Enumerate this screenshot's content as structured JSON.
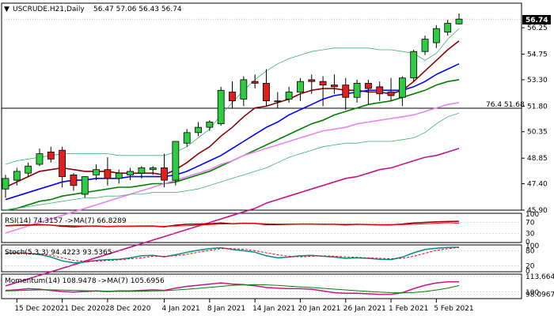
{
  "header": {
    "symbol": "USCRUDE.H21,Daily",
    "ohlc": "56.47 57.06 56.43 56.74"
  },
  "price_tag": "56.74",
  "fib_label": "76.4 51.68",
  "chart_data": [
    {
      "type": "candlestick",
      "ylim": [
        45.9,
        57.6
      ],
      "price_ticks": [
        "56.25",
        "54.75",
        "53.30",
        "51.80",
        "50.35",
        "48.85",
        "47.40",
        "45.90"
      ],
      "x_ticks": [
        "15 Dec 2020",
        "21 Dec 2020",
        "28 Dec 2020",
        "4 Jan 2021",
        "8 Jan 2021",
        "14 Jan 2021",
        "20 Jan 2021",
        "26 Jan 2021",
        "1 Feb 2021",
        "5 Feb 2021"
      ],
      "fib_level": 51.68,
      "candles": [
        {
          "date": "14 Dec 2020",
          "o": 47.1,
          "h": 47.9,
          "l": 46.6,
          "c": 47.7
        },
        {
          "date": "15 Dec 2020",
          "o": 47.6,
          "h": 48.3,
          "l": 47.3,
          "c": 48.1
        },
        {
          "date": "16 Dec 2020",
          "o": 48.0,
          "h": 48.6,
          "l": 47.8,
          "c": 48.4
        },
        {
          "date": "17 Dec 2020",
          "o": 48.5,
          "h": 49.4,
          "l": 48.4,
          "c": 49.1
        },
        {
          "date": "18 Dec 2020",
          "o": 49.2,
          "h": 49.5,
          "l": 48.6,
          "c": 48.8
        },
        {
          "date": "21 Dec 2020",
          "o": 49.3,
          "h": 49.5,
          "l": 47.2,
          "c": 47.8
        },
        {
          "date": "22 Dec 2020",
          "o": 47.9,
          "h": 48.0,
          "l": 47.0,
          "c": 47.3
        },
        {
          "date": "23 Dec 2020",
          "o": 46.8,
          "h": 47.7,
          "l": 46.6,
          "c": 47.8
        },
        {
          "date": "24 Dec 2020",
          "o": 47.9,
          "h": 48.5,
          "l": 47.6,
          "c": 48.2
        },
        {
          "date": "28 Dec 2020",
          "o": 48.2,
          "h": 48.9,
          "l": 47.3,
          "c": 47.7
        },
        {
          "date": "29 Dec 2020",
          "o": 47.7,
          "h": 48.2,
          "l": 47.4,
          "c": 48.0
        },
        {
          "date": "30 Dec 2020",
          "o": 47.9,
          "h": 48.3,
          "l": 47.6,
          "c": 48.1
        },
        {
          "date": "31 Dec 2020",
          "o": 48.0,
          "h": 48.4,
          "l": 47.7,
          "c": 48.3
        },
        {
          "date": "1 Jan 2021",
          "o": 48.2,
          "h": 48.4,
          "l": 47.9,
          "c": 48.3
        },
        {
          "date": "4 Jan 2021",
          "o": 48.3,
          "h": 49.1,
          "l": 47.2,
          "c": 47.6
        },
        {
          "date": "5 Jan 2021",
          "o": 47.6,
          "h": 49.8,
          "l": 47.3,
          "c": 49.8
        },
        {
          "date": "6 Jan 2021",
          "o": 49.7,
          "h": 50.5,
          "l": 49.5,
          "c": 50.3
        },
        {
          "date": "7 Jan 2021",
          "o": 50.3,
          "h": 50.9,
          "l": 50.1,
          "c": 50.6
        },
        {
          "date": "8 Jan 2021",
          "o": 50.6,
          "h": 51.0,
          "l": 50.4,
          "c": 50.9
        },
        {
          "date": "11 Jan 2021",
          "o": 50.8,
          "h": 52.9,
          "l": 50.7,
          "c": 52.7
        },
        {
          "date": "12 Jan 2021",
          "o": 52.6,
          "h": 53.2,
          "l": 51.7,
          "c": 52.1
        },
        {
          "date": "13 Jan 2021",
          "o": 52.2,
          "h": 53.5,
          "l": 51.8,
          "c": 53.3
        },
        {
          "date": "14 Jan 2021",
          "o": 53.2,
          "h": 53.6,
          "l": 52.8,
          "c": 53.1
        },
        {
          "date": "15 Jan 2021",
          "o": 53.1,
          "h": 53.9,
          "l": 51.8,
          "c": 52.1
        },
        {
          "date": "18 Jan 2021",
          "o": 52.1,
          "h": 52.6,
          "l": 51.7,
          "c": 52.1
        },
        {
          "date": "19 Jan 2021",
          "o": 52.2,
          "h": 52.9,
          "l": 52.0,
          "c": 52.6
        },
        {
          "date": "20 Jan 2021",
          "o": 52.6,
          "h": 53.4,
          "l": 52.1,
          "c": 53.2
        },
        {
          "date": "21 Jan 2021",
          "o": 53.3,
          "h": 53.6,
          "l": 52.5,
          "c": 53.2
        },
        {
          "date": "22 Jan 2021",
          "o": 53.2,
          "h": 53.5,
          "l": 51.8,
          "c": 53.0
        },
        {
          "date": "25 Jan 2021",
          "o": 53.0,
          "h": 53.6,
          "l": 52.5,
          "c": 52.9
        },
        {
          "date": "26 Jan 2021",
          "o": 53.0,
          "h": 53.4,
          "l": 51.6,
          "c": 52.3
        },
        {
          "date": "27 Jan 2021",
          "o": 52.3,
          "h": 53.3,
          "l": 52.0,
          "c": 53.1
        },
        {
          "date": "28 Jan 2021",
          "o": 53.1,
          "h": 53.3,
          "l": 51.9,
          "c": 52.8
        },
        {
          "date": "29 Jan 2021",
          "o": 52.9,
          "h": 53.2,
          "l": 52.1,
          "c": 52.5
        },
        {
          "date": "1 Feb 2021",
          "o": 52.6,
          "h": 53.4,
          "l": 52.1,
          "c": 52.4
        },
        {
          "date": "2 Feb 2021",
          "o": 52.3,
          "h": 53.5,
          "l": 51.8,
          "c": 53.4
        },
        {
          "date": "3 Feb 2021",
          "o": 53.4,
          "h": 55.0,
          "l": 53.2,
          "c": 54.9
        },
        {
          "date": "4 Feb 2021",
          "o": 54.9,
          "h": 55.8,
          "l": 54.7,
          "c": 55.6
        },
        {
          "date": "5 Feb 2021",
          "o": 55.4,
          "h": 56.4,
          "l": 55.1,
          "c": 56.2
        },
        {
          "date": "8 Feb 2021",
          "o": 56.0,
          "h": 56.7,
          "l": 55.8,
          "c": 56.5
        },
        {
          "date": "9 Feb 2021",
          "o": 56.47,
          "h": 57.06,
          "l": 56.43,
          "c": 56.74
        }
      ],
      "overlays": [
        {
          "color": "#8b0000",
          "values": [
            47.2,
            47.5,
            47.8,
            48.1,
            48.2,
            48.3,
            48.2,
            48.1,
            48.1,
            48.1,
            48.0,
            48.0,
            48.0,
            48.0,
            47.9,
            48.2,
            48.6,
            49.1,
            49.5,
            50.1,
            50.6,
            51.2,
            51.7,
            51.8,
            52.0,
            52.2,
            52.5,
            52.7,
            52.8,
            52.8,
            52.7,
            52.7,
            52.6,
            52.6,
            52.5,
            52.7,
            53.2,
            53.8,
            54.4,
            55.0,
            55.5
          ]
        },
        {
          "color": "#0000ff",
          "values": [
            46.5,
            46.7,
            46.9,
            47.1,
            47.3,
            47.5,
            47.6,
            47.6,
            47.7,
            47.7,
            47.7,
            47.8,
            47.8,
            47.8,
            47.8,
            47.9,
            48.1,
            48.4,
            48.7,
            49.0,
            49.4,
            49.8,
            50.2,
            50.6,
            50.9,
            51.3,
            51.6,
            51.9,
            52.2,
            52.4,
            52.5,
            52.6,
            52.7,
            52.7,
            52.7,
            52.7,
            52.9,
            53.2,
            53.6,
            53.9,
            54.2
          ]
        },
        {
          "color": "#008000",
          "values": [
            45.9,
            46.0,
            46.2,
            46.4,
            46.5,
            46.7,
            46.8,
            46.9,
            47.0,
            47.1,
            47.2,
            47.2,
            47.3,
            47.4,
            47.4,
            47.5,
            47.7,
            47.9,
            48.1,
            48.4,
            48.7,
            49.0,
            49.3,
            49.6,
            49.9,
            50.2,
            50.5,
            50.8,
            51.0,
            51.3,
            51.5,
            51.7,
            51.9,
            52.0,
            52.1,
            52.3,
            52.5,
            52.7,
            53.0,
            53.2,
            53.3
          ]
        },
        {
          "color": "#ee82ee",
          "values": [
            44.6,
            44.8,
            45.0,
            45.2,
            45.4,
            45.6,
            45.8,
            46.0,
            46.2,
            46.4,
            46.6,
            46.8,
            47.0,
            47.2,
            47.4,
            47.6,
            47.8,
            48.0,
            48.2,
            48.5,
            48.7,
            49.0,
            49.2,
            49.4,
            49.6,
            49.8,
            50.0,
            50.2,
            50.4,
            50.5,
            50.6,
            50.8,
            50.9,
            51.0,
            51.1,
            51.2,
            51.3,
            51.5,
            51.7,
            51.9,
            52.0
          ]
        },
        {
          "color": "#c71585",
          "values": [
            41.6,
            41.8,
            42.0,
            42.2,
            42.4,
            42.6,
            42.8,
            43.0,
            43.2,
            43.4,
            43.6,
            43.8,
            44.0,
            44.2,
            44.4,
            44.6,
            44.8,
            45.0,
            45.2,
            45.4,
            45.6,
            45.8,
            46.0,
            46.3,
            46.5,
            46.7,
            46.9,
            47.1,
            47.3,
            47.5,
            47.7,
            47.8,
            48.0,
            48.2,
            48.3,
            48.5,
            48.7,
            48.9,
            49.0,
            49.2,
            49.4
          ]
        },
        {
          "color": "#3cb371",
          "values": [
            48.5,
            48.7,
            48.8,
            48.9,
            49.0,
            49.1,
            49.1,
            49.1,
            49.1,
            49.1,
            49.0,
            49.0,
            49.0,
            49.0,
            49.0,
            49.2,
            49.5,
            50.0,
            50.5,
            51.3,
            52.0,
            52.7,
            53.3,
            53.8,
            54.2,
            54.5,
            54.7,
            54.9,
            55.0,
            55.1,
            55.1,
            55.1,
            55.1,
            55.0,
            55.0,
            54.9,
            54.8,
            54.4,
            54.8,
            55.6,
            56.2
          ]
        },
        {
          "color": "#3cb371",
          "values": [
            45.9,
            46.0,
            46.1,
            46.2,
            46.3,
            46.4,
            46.5,
            46.6,
            46.6,
            46.7,
            46.7,
            46.8,
            46.8,
            46.9,
            46.9,
            46.9,
            47.0,
            47.1,
            47.3,
            47.5,
            47.7,
            47.9,
            48.1,
            48.3,
            48.6,
            48.9,
            49.1,
            49.3,
            49.5,
            49.6,
            49.7,
            49.7,
            49.8,
            49.8,
            49.8,
            49.9,
            50.0,
            50.3,
            50.8,
            51.2,
            51.4
          ]
        }
      ]
    },
    {
      "type": "line",
      "title": "RSI(14) 74.3157 ->MA(7) 66.8289",
      "ylim": [
        0,
        100
      ],
      "ticks": [
        "100",
        "70",
        "30",
        "0"
      ],
      "series": [
        {
          "color": "#8b0000",
          "values": [
            58,
            60,
            61,
            62,
            60,
            56,
            54,
            56,
            57,
            55,
            56,
            56,
            57,
            57,
            54,
            60,
            63,
            64,
            65,
            68,
            65,
            67,
            66,
            62,
            62,
            63,
            64,
            64,
            63,
            63,
            61,
            63,
            62,
            61,
            61,
            64,
            68,
            70,
            72,
            73,
            74
          ]
        },
        {
          "color": "#ff0000",
          "values": [
            57,
            58,
            59,
            60,
            60,
            59,
            58,
            57,
            57,
            56,
            56,
            56,
            56,
            56,
            56,
            57,
            58,
            60,
            62,
            64,
            65,
            66,
            66,
            65,
            64,
            64,
            64,
            64,
            64,
            63,
            63,
            63,
            62,
            62,
            62,
            62,
            63,
            65,
            67,
            69,
            67
          ]
        }
      ]
    },
    {
      "type": "line",
      "title": "Stoch(5,3,3) 94.4223 93.5365",
      "ylim": [
        0,
        100
      ],
      "ticks": [
        "100",
        "80",
        "20",
        "0"
      ],
      "series": [
        {
          "color": "#008b8b",
          "values": [
            70,
            72,
            70,
            65,
            55,
            40,
            32,
            35,
            42,
            45,
            46,
            52,
            60,
            62,
            56,
            64,
            74,
            82,
            88,
            92,
            85,
            80,
            74,
            60,
            52,
            55,
            60,
            62,
            58,
            55,
            50,
            52,
            50,
            46,
            45,
            55,
            72,
            85,
            90,
            93,
            94
          ]
        },
        {
          "color": "#ff0000",
          "values": [
            68,
            70,
            70,
            68,
            62,
            52,
            42,
            38,
            38,
            42,
            44,
            48,
            52,
            58,
            58,
            60,
            66,
            74,
            82,
            88,
            88,
            86,
            80,
            72,
            64,
            58,
            56,
            58,
            60,
            58,
            56,
            54,
            52,
            50,
            48,
            50,
            58,
            70,
            82,
            88,
            93
          ]
        }
      ]
    },
    {
      "type": "line",
      "title": "Momentum(14) 108.9478 ->MA(7) 105.6956",
      "ylim": [
        95,
        115
      ],
      "ticks": [
        "113.6647",
        "100",
        "98.0967"
      ],
      "series": [
        {
          "color": "#c71585",
          "values": [
            101.5,
            102,
            103,
            102.5,
            101.5,
            100.5,
            100,
            100.5,
            101,
            100.5,
            101,
            101,
            101.5,
            102,
            101.5,
            103.5,
            105,
            106,
            107,
            108,
            107,
            106.5,
            105.5,
            104,
            103.5,
            103,
            103,
            102.5,
            101,
            99.5,
            99,
            99,
            98.5,
            98,
            98,
            99.5,
            103,
            106,
            108,
            109,
            108.9
          ]
        },
        {
          "color": "#008000",
          "values": [
            101,
            101.3,
            101.6,
            101.9,
            102,
            101.8,
            101.5,
            101.2,
            101,
            100.8,
            100.7,
            100.7,
            100.8,
            101,
            101.2,
            101.8,
            102.5,
            103.3,
            104.2,
            105,
            105.8,
            106.3,
            106.5,
            106.3,
            105.8,
            105.2,
            104.6,
            104,
            103.3,
            102.6,
            101.9,
            101.2,
            100.6,
            100,
            99.5,
            99.3,
            99.6,
            100.5,
            101.8,
            103.5,
            105.7
          ]
        }
      ]
    }
  ]
}
